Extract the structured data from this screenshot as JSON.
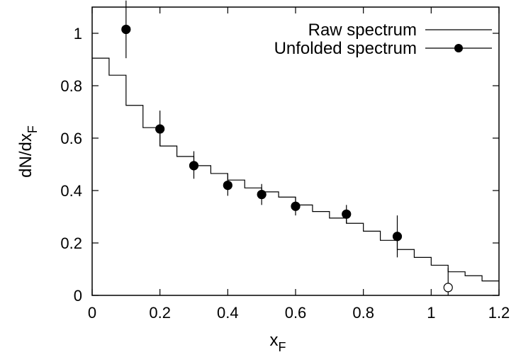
{
  "chart_data": {
    "type": "scatter",
    "xlabel": "x",
    "xlabel_sub": "F",
    "ylabel": "dN/dx",
    "ylabel_sub": "F",
    "xlim": [
      0,
      1.2
    ],
    "ylim": [
      0,
      1.1
    ],
    "x_ticks": [
      0,
      0.2,
      0.4,
      0.6,
      0.8,
      1,
      1.2
    ],
    "x_tick_labels": [
      "0",
      "0.2",
      "0.4",
      "0.6",
      "0.8",
      "1",
      "1.2"
    ],
    "y_ticks": [
      0,
      0.2,
      0.4,
      0.6,
      0.8,
      1
    ],
    "y_tick_labels": [
      "0",
      "0.2",
      "0.4",
      "0.6",
      "0.8",
      "1"
    ],
    "legend_position": "top-right",
    "series": [
      {
        "name": "Raw spectrum",
        "style": "step",
        "color": "#000000",
        "bin_edges": [
          0,
          0.05,
          0.1,
          0.15,
          0.2,
          0.25,
          0.3,
          0.35,
          0.4,
          0.45,
          0.5,
          0.55,
          0.6,
          0.65,
          0.7,
          0.75,
          0.8,
          0.85,
          0.9,
          0.95,
          1.0,
          1.05,
          1.1,
          1.15,
          1.2
        ],
        "values": [
          0.905,
          0.84,
          0.725,
          0.64,
          0.57,
          0.53,
          0.495,
          0.465,
          0.44,
          0.41,
          0.395,
          0.375,
          0.345,
          0.32,
          0.295,
          0.275,
          0.245,
          0.21,
          0.175,
          0.145,
          0.115,
          0.09,
          0.075,
          0.055
        ]
      },
      {
        "name": "Unfolded spectrum",
        "style": "points",
        "color": "#000000",
        "points": [
          {
            "x": 0.1,
            "y": 1.015,
            "err_low": 0.11,
            "err_high": 0.11
          },
          {
            "x": 0.2,
            "y": 0.635,
            "err_low": 0.065,
            "err_high": 0.07
          },
          {
            "x": 0.3,
            "y": 0.495,
            "err_low": 0.05,
            "err_high": 0.055
          },
          {
            "x": 0.4,
            "y": 0.42,
            "err_low": 0.04,
            "err_high": 0.045
          },
          {
            "x": 0.5,
            "y": 0.385,
            "err_low": 0.04,
            "err_high": 0.04
          },
          {
            "x": 0.6,
            "y": 0.34,
            "err_low": 0.035,
            "err_high": 0.035
          },
          {
            "x": 0.75,
            "y": 0.31,
            "err_low": 0.035,
            "err_high": 0.035
          },
          {
            "x": 0.9,
            "y": 0.225,
            "err_low": 0.08,
            "err_high": 0.08
          }
        ]
      },
      {
        "name": "",
        "style": "open-points",
        "color": "#000000",
        "points": [
          {
            "x": 1.05,
            "y": 0.03,
            "err_low": 0.03,
            "err_high": 0.075
          }
        ]
      }
    ]
  }
}
